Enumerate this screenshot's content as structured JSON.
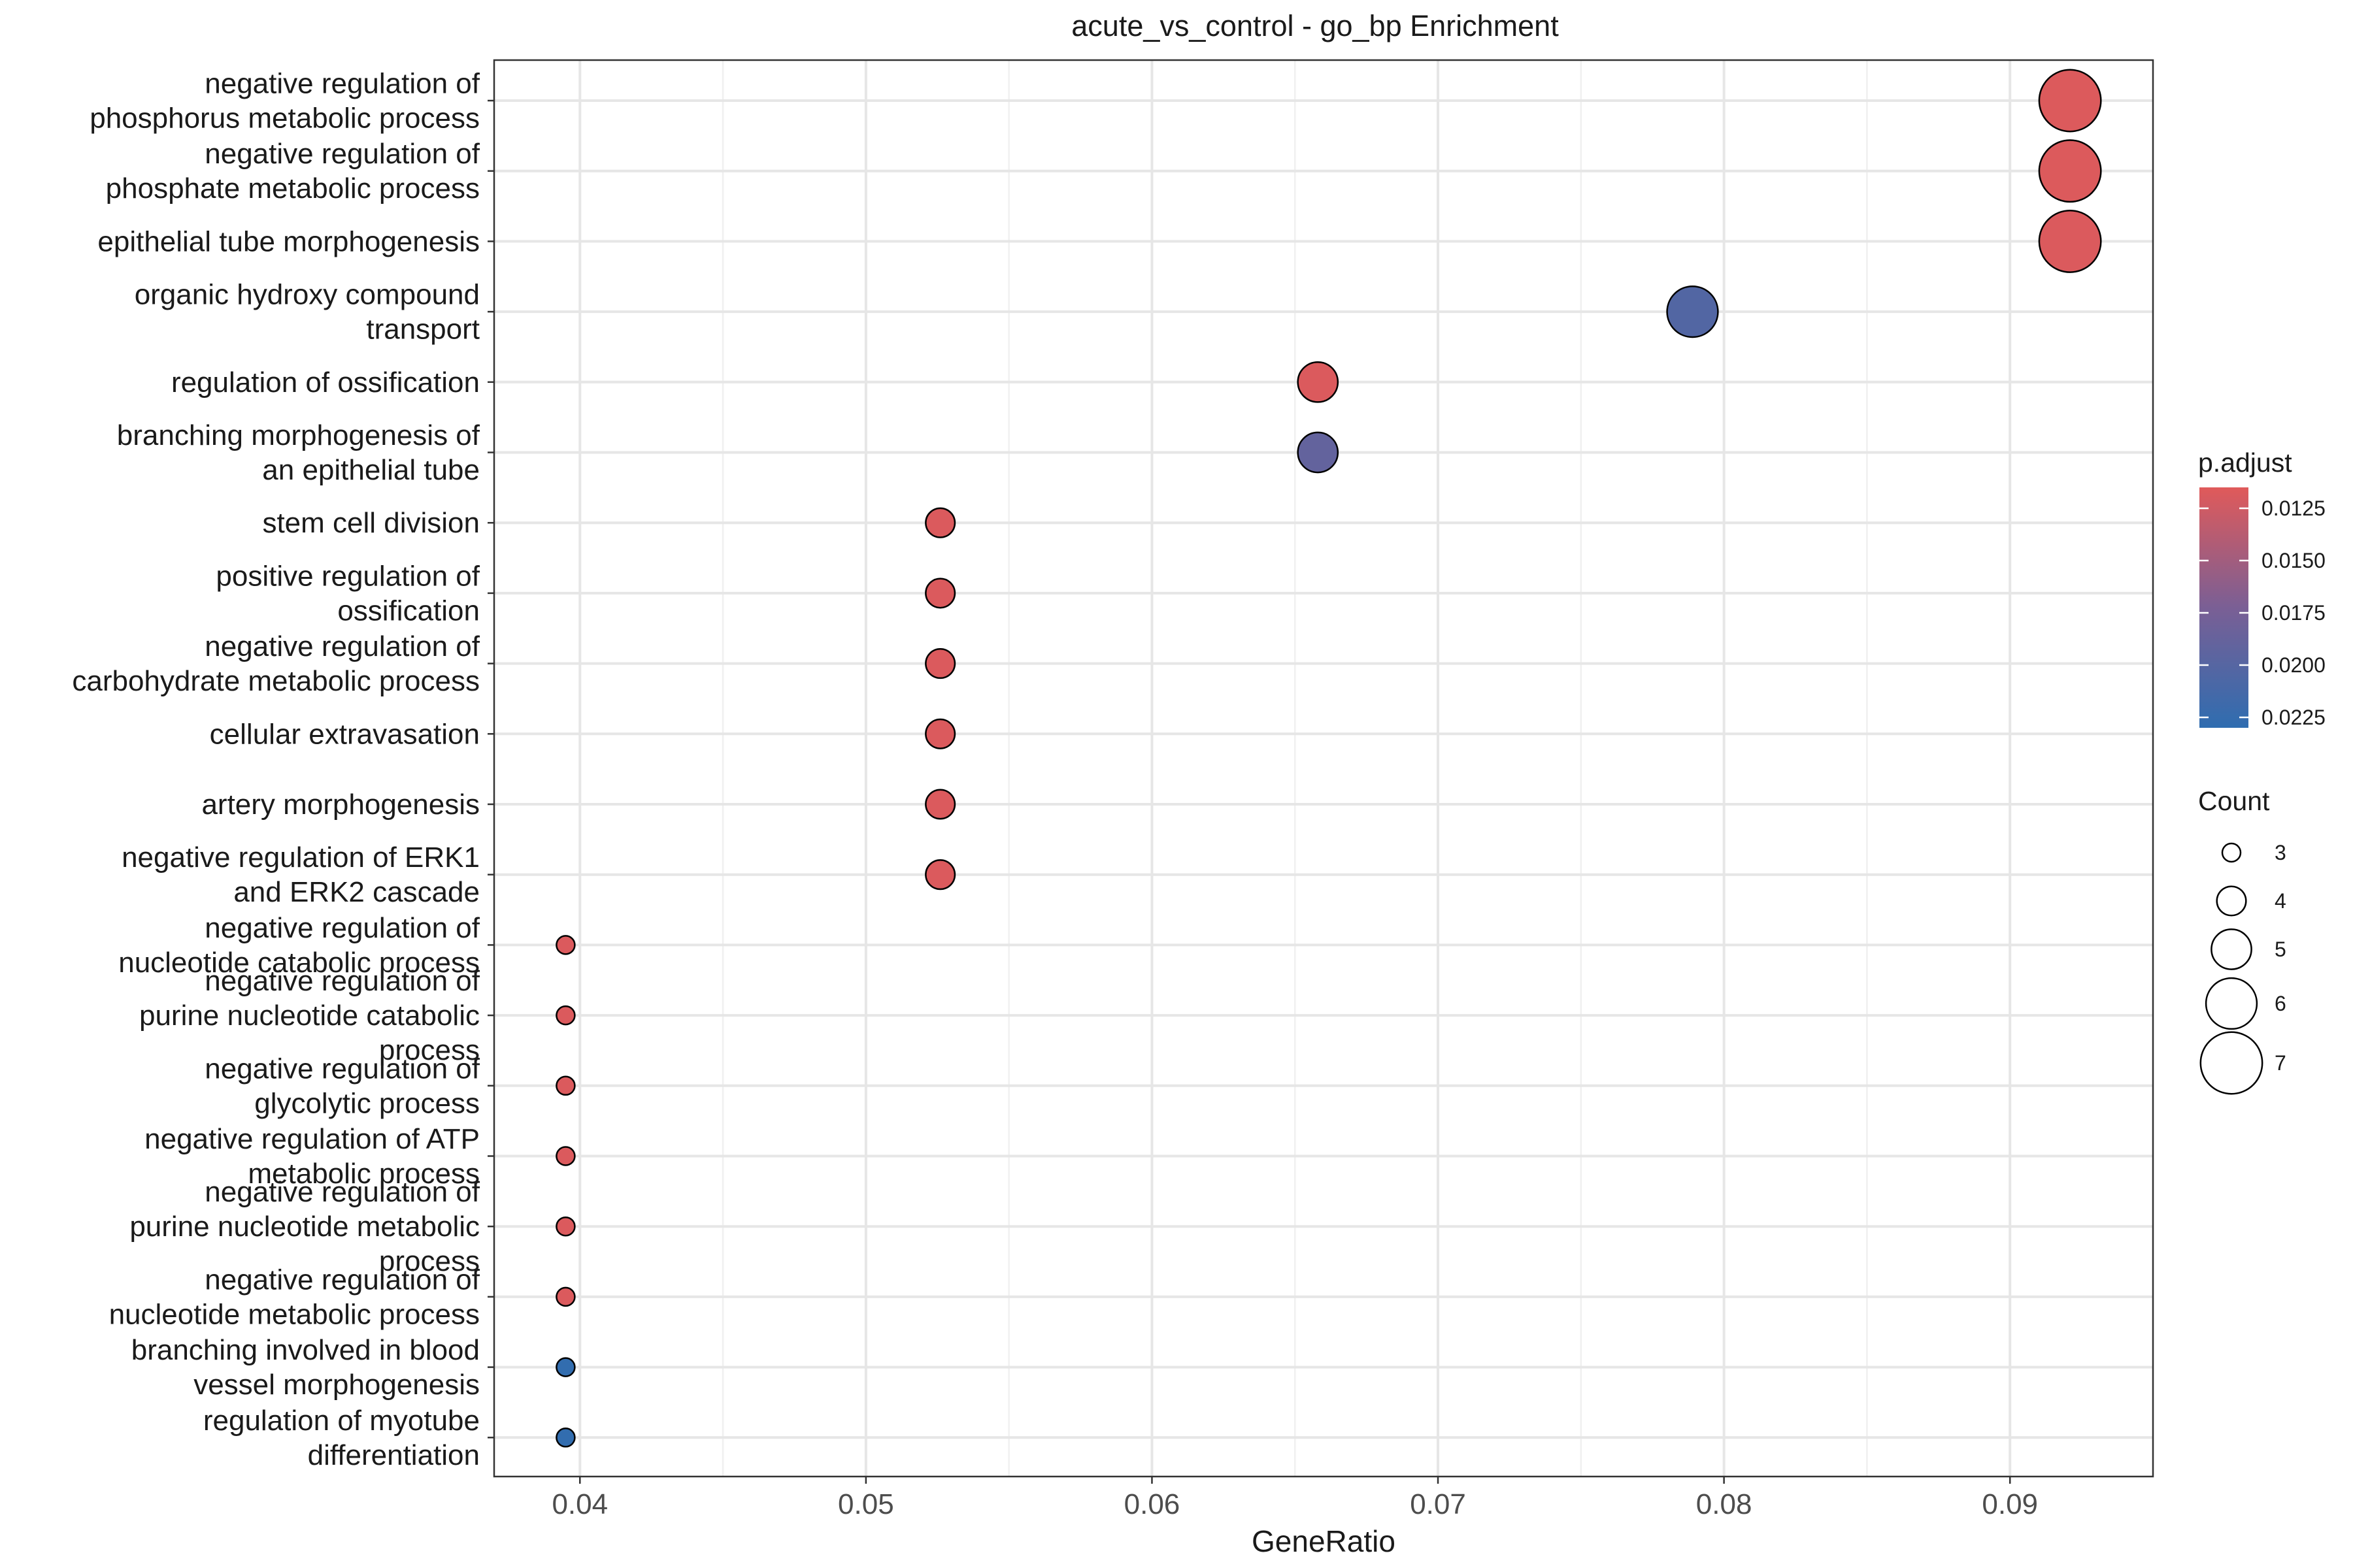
{
  "chart_data": {
    "type": "scatter",
    "title": "acute_vs_control - go_bp Enrichment",
    "xlabel": "GeneRatio",
    "ylabel": "",
    "xlim": [
      0.037,
      0.095
    ],
    "x_ticks": [
      0.04,
      0.05,
      0.06,
      0.07,
      0.08,
      0.09
    ],
    "x_tick_labels": [
      "0.04",
      "0.05",
      "0.06",
      "0.07",
      "0.08",
      "0.09"
    ],
    "grid": true,
    "legend_position": "right",
    "color_legend": {
      "title": "p.adjust",
      "low_color": "#e05a5a",
      "mid_color": "#7a5f95",
      "high_color": "#2f6db0",
      "range": [
        0.0115,
        0.023
      ],
      "ticks": [
        0.0125,
        0.015,
        0.0175,
        0.02,
        0.0225
      ],
      "tick_labels": [
        "0.0125",
        "0.0150",
        "0.0175",
        "0.0200",
        "0.0225"
      ]
    },
    "size_legend": {
      "title": "Count",
      "values": [
        3,
        4,
        5,
        6,
        7
      ],
      "labels": [
        "3",
        "4",
        "5",
        "6",
        "7"
      ]
    },
    "points": [
      {
        "term": [
          "negative regulation of",
          "phosphorus metabolic process"
        ],
        "x": 0.0921,
        "count": 7,
        "p_adjust": 0.0117
      },
      {
        "term": [
          "negative regulation of",
          "phosphate metabolic process"
        ],
        "x": 0.0921,
        "count": 7,
        "p_adjust": 0.0117
      },
      {
        "term": [
          "epithelial tube morphogenesis"
        ],
        "x": 0.0921,
        "count": 7,
        "p_adjust": 0.0118
      },
      {
        "term": [
          "organic hydroxy compound",
          "transport"
        ],
        "x": 0.0789,
        "count": 6,
        "p_adjust": 0.0203
      },
      {
        "term": [
          "regulation of ossification"
        ],
        "x": 0.0658,
        "count": 5,
        "p_adjust": 0.0118
      },
      {
        "term": [
          "branching morphogenesis of",
          "an epithelial tube"
        ],
        "x": 0.0658,
        "count": 5,
        "p_adjust": 0.019
      },
      {
        "term": [
          "stem cell division"
        ],
        "x": 0.0526,
        "count": 4,
        "p_adjust": 0.0118
      },
      {
        "term": [
          "positive regulation of",
          "ossification"
        ],
        "x": 0.0526,
        "count": 4,
        "p_adjust": 0.0118
      },
      {
        "term": [
          "negative regulation of",
          "carbohydrate metabolic process"
        ],
        "x": 0.0526,
        "count": 4,
        "p_adjust": 0.0118
      },
      {
        "term": [
          "cellular extravasation"
        ],
        "x": 0.0526,
        "count": 4,
        "p_adjust": 0.0118
      },
      {
        "term": [
          "artery morphogenesis"
        ],
        "x": 0.0526,
        "count": 4,
        "p_adjust": 0.0118
      },
      {
        "term": [
          "negative regulation of ERK1",
          "and ERK2 cascade"
        ],
        "x": 0.0526,
        "count": 4,
        "p_adjust": 0.0118
      },
      {
        "term": [
          "negative regulation of",
          "nucleotide catabolic process"
        ],
        "x": 0.0395,
        "count": 3,
        "p_adjust": 0.0118
      },
      {
        "term": [
          "negative regulation of",
          "purine nucleotide catabolic",
          "process"
        ],
        "x": 0.0395,
        "count": 3,
        "p_adjust": 0.0118
      },
      {
        "term": [
          "negative regulation of",
          "glycolytic process"
        ],
        "x": 0.0395,
        "count": 3,
        "p_adjust": 0.0118
      },
      {
        "term": [
          "negative regulation of ATP",
          "metabolic process"
        ],
        "x": 0.0395,
        "count": 3,
        "p_adjust": 0.0118
      },
      {
        "term": [
          "negative regulation of",
          "purine nucleotide metabolic",
          "process"
        ],
        "x": 0.0395,
        "count": 3,
        "p_adjust": 0.0118
      },
      {
        "term": [
          "negative regulation of",
          "nucleotide metabolic process"
        ],
        "x": 0.0395,
        "count": 3,
        "p_adjust": 0.0118
      },
      {
        "term": [
          "branching involved in blood",
          "vessel morphogenesis"
        ],
        "x": 0.0395,
        "count": 3,
        "p_adjust": 0.0228
      },
      {
        "term": [
          "regulation of myotube",
          "differentiation"
        ],
        "x": 0.0395,
        "count": 3,
        "p_adjust": 0.0228
      }
    ]
  }
}
